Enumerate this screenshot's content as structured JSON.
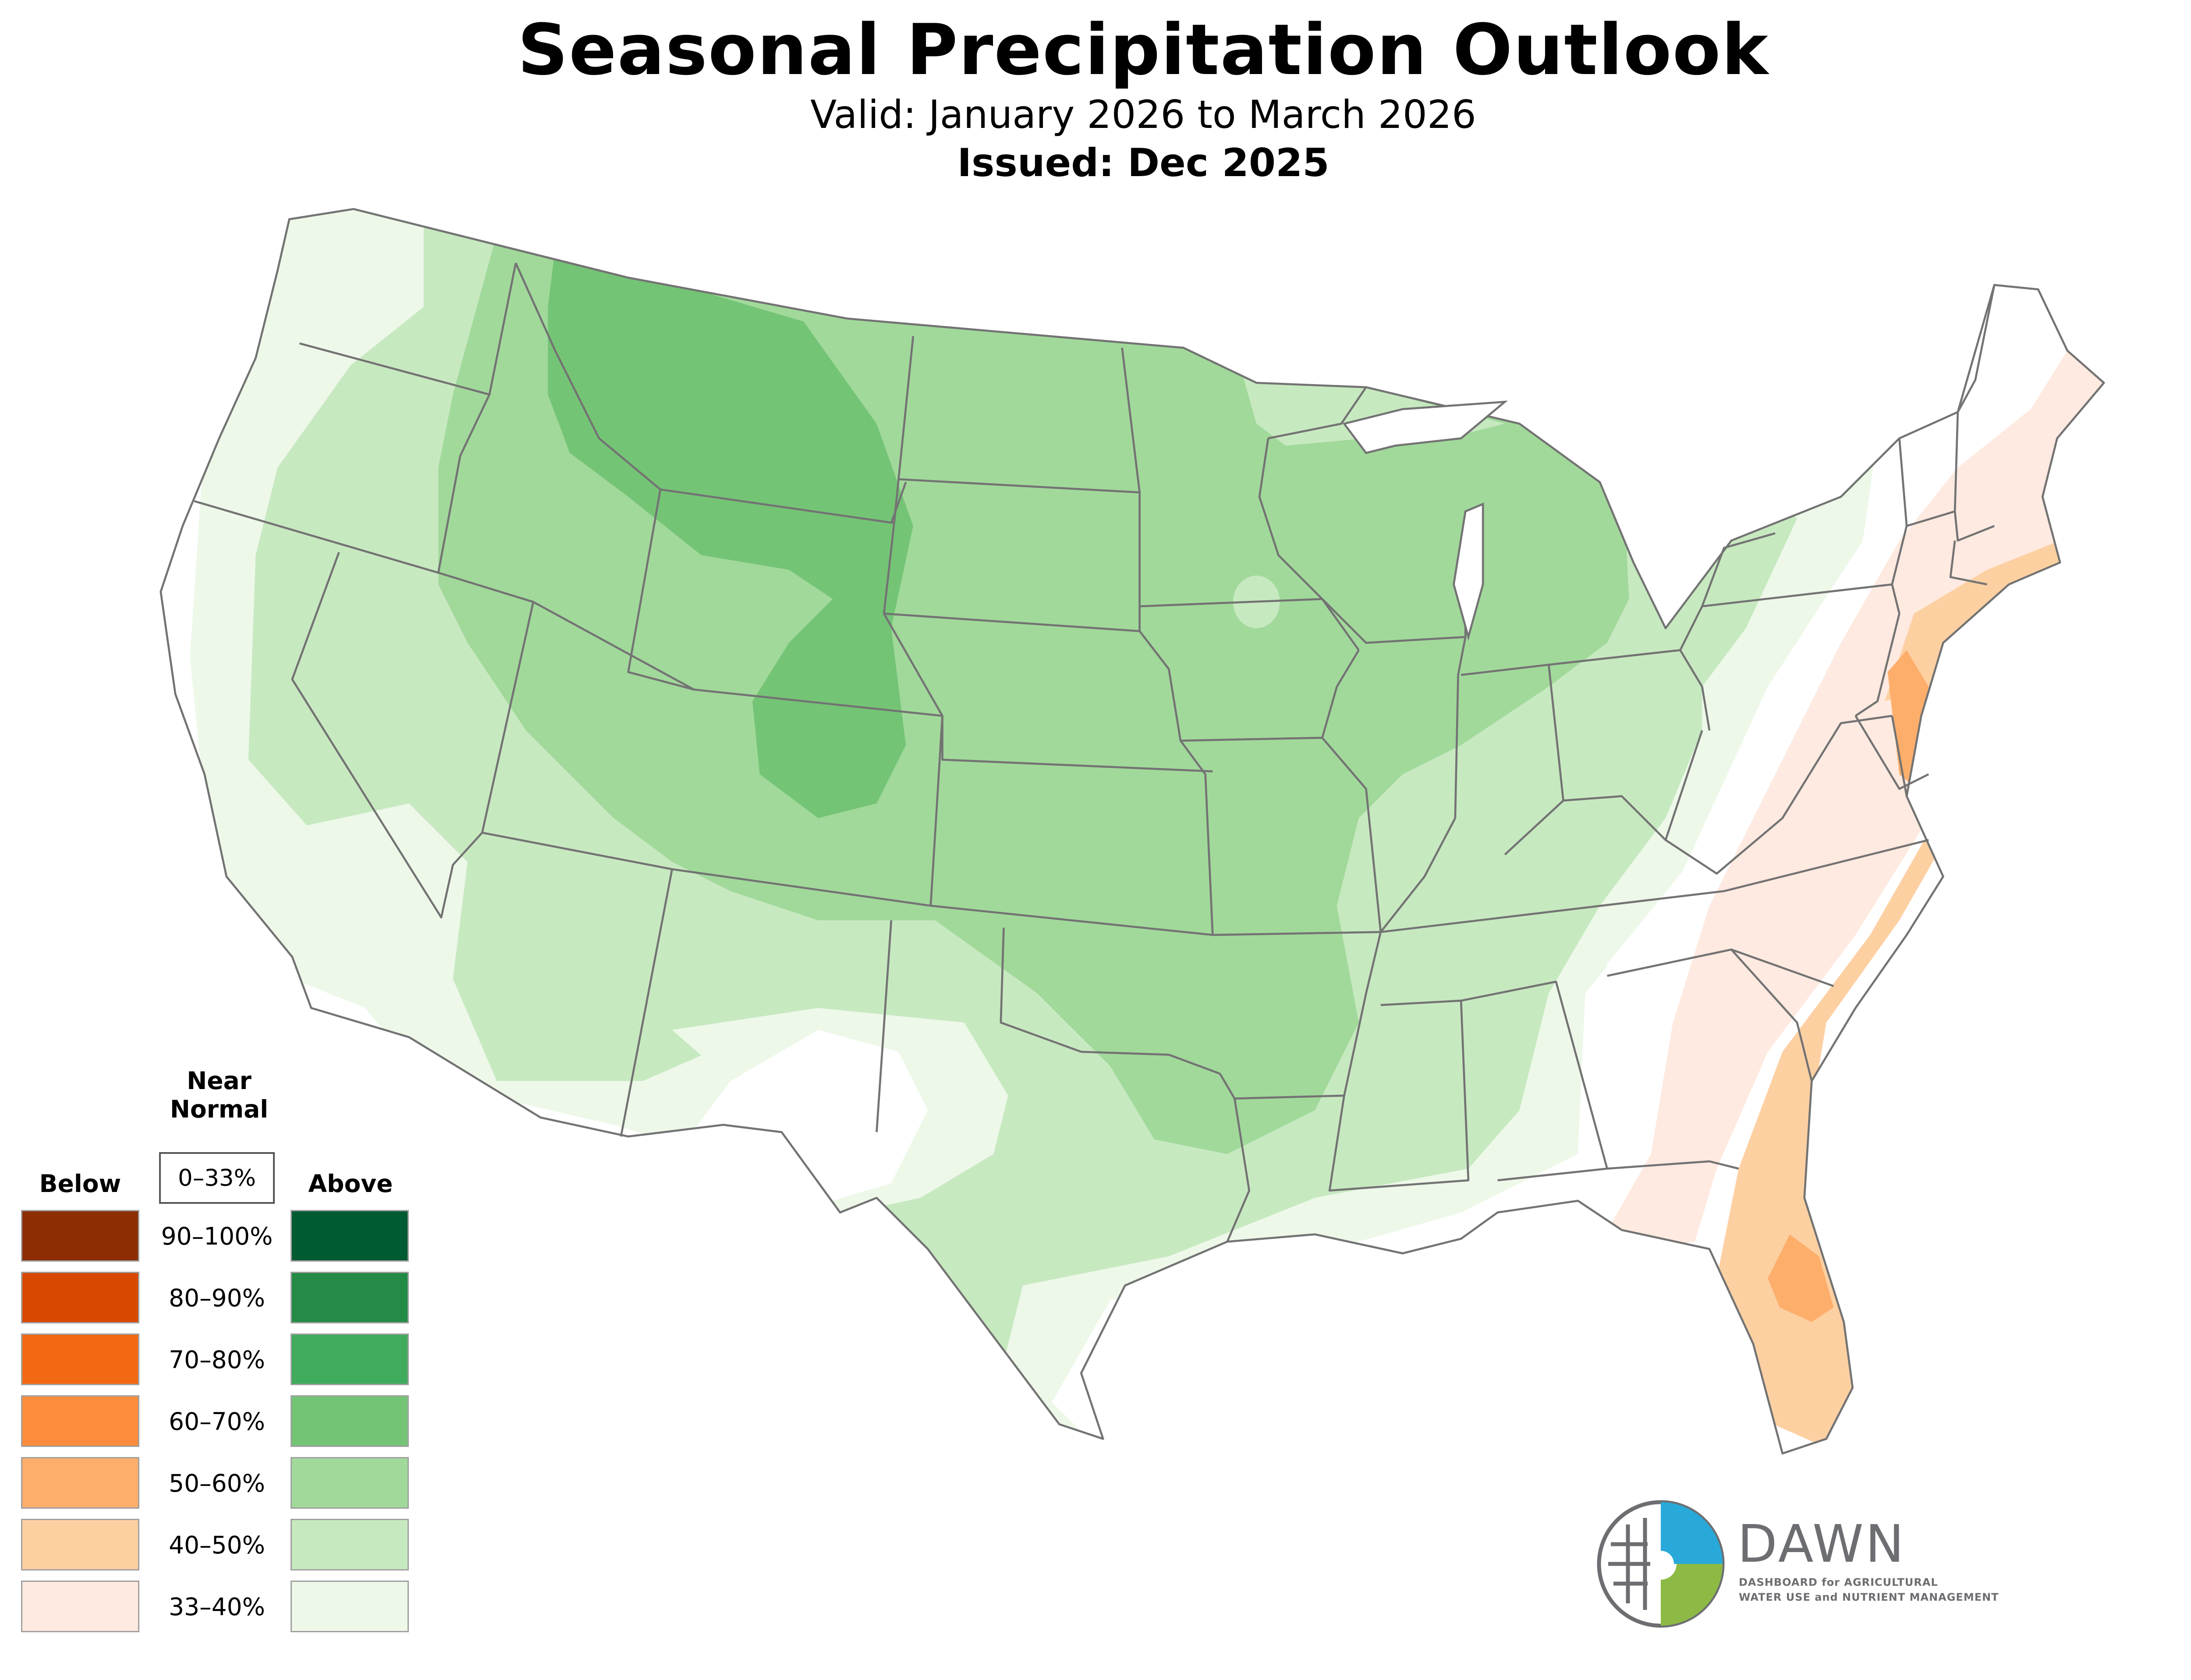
{
  "header": {
    "title": "Seasonal Precipitation Outlook",
    "valid": "Valid: January 2026 to March 2026",
    "issued": "Issued: Dec 2025"
  },
  "legend": {
    "below_label": "Below",
    "near_normal_label_1": "Near",
    "near_normal_label_2": "Normal",
    "above_label": "Above",
    "near_normal_range": "0–33%",
    "rows": [
      {
        "range": "90–100%",
        "below_color": "#8c2d04",
        "above_color": "#005a32"
      },
      {
        "range": "80–90%",
        "below_color": "#d94801",
        "above_color": "#238b45"
      },
      {
        "range": "70–80%",
        "below_color": "#f16913",
        "above_color": "#41ab5d"
      },
      {
        "range": "60–70%",
        "below_color": "#fd8d3c",
        "above_color": "#74c476"
      },
      {
        "range": "50–60%",
        "below_color": "#fdae6b",
        "above_color": "#a1d99b"
      },
      {
        "range": "40–50%",
        "below_color": "#fdd0a2",
        "above_color": "#c7e9c0"
      },
      {
        "range": "33–40%",
        "below_color": "#feeae0",
        "above_color": "#edf8e9"
      }
    ]
  },
  "map": {
    "region": "contiguous-united-states",
    "border_color": "#737373",
    "background_color": "#ffffff",
    "probability_zones": [
      {
        "name": "above-33-40",
        "category": "above",
        "probability": "33–40%",
        "color": "#edf8e9"
      },
      {
        "name": "above-40-50",
        "category": "above",
        "probability": "40–50%",
        "color": "#c7e9c0"
      },
      {
        "name": "above-50-60",
        "category": "above",
        "probability": "50–60%",
        "color": "#a1d99b"
      },
      {
        "name": "above-60-70",
        "category": "above",
        "probability": "60–70%",
        "color": "#74c476"
      },
      {
        "name": "below-33-40",
        "category": "below",
        "probability": "33–40%",
        "color": "#feeae0"
      },
      {
        "name": "below-40-50",
        "category": "below",
        "probability": "40–50%",
        "color": "#fdd0a2"
      },
      {
        "name": "below-50-60",
        "category": "below",
        "probability": "50–60%",
        "color": "#fdae6b"
      }
    ]
  },
  "branding": {
    "name": "DAWN",
    "subtitle_1": "DASHBOARD for AGRICULTURAL",
    "subtitle_2": "WATER USE and NUTRIENT MANAGEMENT",
    "blue": "#29a9d9",
    "green": "#8cba44",
    "gray": "#6d6e71"
  }
}
